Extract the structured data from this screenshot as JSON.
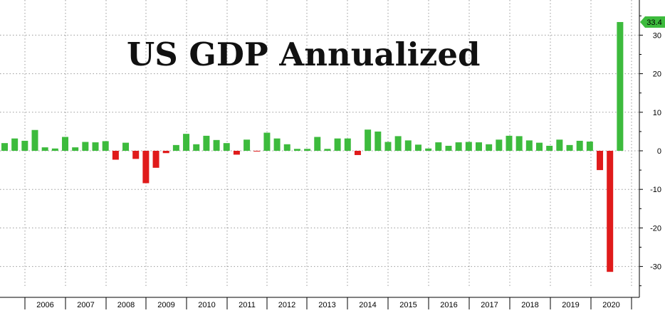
{
  "chart_data": {
    "type": "bar",
    "title": "US GDP Annualized",
    "ylim": [
      -38,
      37
    ],
    "y_ticks": [
      30,
      20,
      10,
      0,
      -10,
      -20,
      -30
    ],
    "y_tick_labels": [
      "30",
      "20",
      "10",
      "0",
      "-10",
      "-20",
      "-30"
    ],
    "grid": true,
    "colors": {
      "positive": "#3dbb3d",
      "negative": "#e01b1b",
      "callout": "#3dbb3d"
    },
    "last_value_label": "33.4",
    "years": [
      "2006",
      "2007",
      "2008",
      "2009",
      "2010",
      "2011",
      "2012",
      "2013",
      "2014",
      "2015",
      "2016",
      "2017",
      "2018",
      "2019",
      "2020"
    ],
    "values": [
      2.0,
      3.2,
      2.6,
      5.4,
      0.9,
      0.6,
      3.6,
      0.9,
      2.3,
      2.2,
      2.5,
      -2.3,
      2.1,
      -2.1,
      -8.4,
      -4.4,
      -0.6,
      1.5,
      4.4,
      1.7,
      3.9,
      2.8,
      2.0,
      -1.0,
      2.9,
      -0.1,
      4.7,
      3.2,
      1.7,
      0.5,
      0.5,
      3.6,
      0.5,
      3.2,
      3.2,
      -1.1,
      5.5,
      5.0,
      2.3,
      3.8,
      2.7,
      1.6,
      0.6,
      2.2,
      1.3,
      2.2,
      2.3,
      2.2,
      1.7,
      2.9,
      3.9,
      3.8,
      2.7,
      2.1,
      1.3,
      2.9,
      1.5,
      2.6,
      2.4,
      -5.0,
      -31.4,
      33.4
    ]
  }
}
